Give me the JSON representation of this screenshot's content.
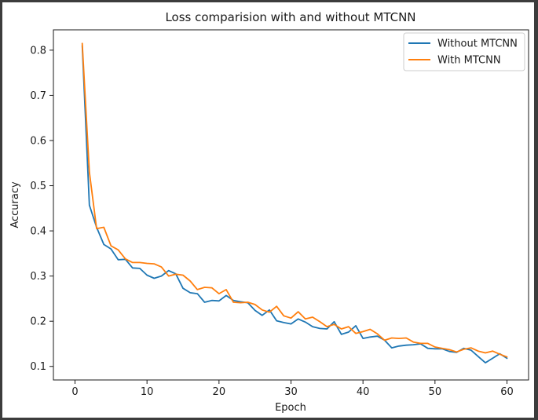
{
  "chart_data": {
    "type": "line",
    "title": "Loss comparision with and without MTCNN",
    "xlabel": "Epoch",
    "ylabel": "Accuracy",
    "xlim": [
      -3,
      63
    ],
    "ylim": [
      0.07,
      0.845
    ],
    "xticks": [
      0,
      10,
      20,
      30,
      40,
      50,
      60
    ],
    "yticks": [
      0.1,
      0.2,
      0.3,
      0.4,
      0.5,
      0.6,
      0.7,
      0.8
    ],
    "grid": false,
    "legend_position": "top-right",
    "x": [
      1,
      2,
      3,
      4,
      5,
      6,
      7,
      8,
      9,
      10,
      11,
      12,
      13,
      14,
      15,
      16,
      17,
      18,
      19,
      20,
      21,
      22,
      23,
      24,
      25,
      26,
      27,
      28,
      29,
      30,
      31,
      32,
      33,
      34,
      35,
      36,
      37,
      38,
      39,
      40,
      41,
      42,
      43,
      44,
      45,
      46,
      47,
      48,
      49,
      50,
      51,
      52,
      53,
      54,
      55,
      56,
      57,
      58,
      59,
      60
    ],
    "series": [
      {
        "name": "Without MTCNN",
        "color": "#1f77b4",
        "values": [
          0.81,
          0.457,
          0.408,
          0.37,
          0.36,
          0.336,
          0.337,
          0.318,
          0.317,
          0.302,
          0.295,
          0.3,
          0.312,
          0.305,
          0.273,
          0.263,
          0.261,
          0.242,
          0.246,
          0.245,
          0.257,
          0.246,
          0.243,
          0.241,
          0.224,
          0.213,
          0.225,
          0.201,
          0.197,
          0.194,
          0.205,
          0.198,
          0.188,
          0.184,
          0.183,
          0.199,
          0.171,
          0.176,
          0.19,
          0.162,
          0.165,
          0.167,
          0.158,
          0.141,
          0.145,
          0.147,
          0.148,
          0.15,
          0.14,
          0.139,
          0.139,
          0.133,
          0.131,
          0.14,
          0.136,
          0.122,
          0.108,
          0.118,
          0.128,
          0.118
        ]
      },
      {
        "name": "With MTCNN",
        "color": "#ff7f0e",
        "values": [
          0.815,
          0.53,
          0.405,
          0.408,
          0.367,
          0.358,
          0.338,
          0.33,
          0.33,
          0.328,
          0.327,
          0.32,
          0.3,
          0.304,
          0.302,
          0.289,
          0.27,
          0.275,
          0.274,
          0.261,
          0.27,
          0.242,
          0.241,
          0.242,
          0.237,
          0.225,
          0.22,
          0.233,
          0.212,
          0.207,
          0.221,
          0.205,
          0.209,
          0.199,
          0.188,
          0.193,
          0.183,
          0.188,
          0.173,
          0.177,
          0.182,
          0.172,
          0.158,
          0.163,
          0.162,
          0.163,
          0.154,
          0.151,
          0.151,
          0.143,
          0.14,
          0.137,
          0.132,
          0.138,
          0.141,
          0.134,
          0.13,
          0.134,
          0.127,
          0.121
        ]
      }
    ]
  }
}
